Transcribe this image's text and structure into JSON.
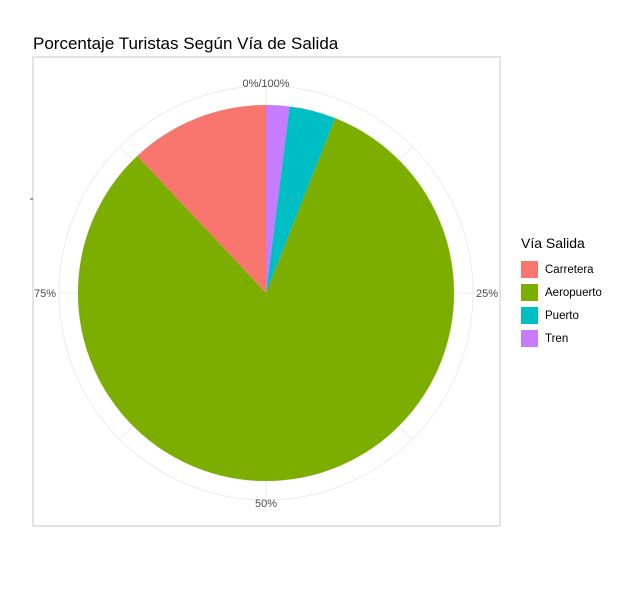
{
  "chart_data": {
    "type": "pie",
    "title": "Porcentaje Turistas Según Vía de Salida",
    "legend_title": "Vía Salida",
    "legend_placement": "right",
    "grid": true,
    "slices": [
      {
        "name": "Carretera",
        "value": 12,
        "color": "#F8766D"
      },
      {
        "name": "Aeropuerto",
        "value": 82,
        "color": "#7CAE00"
      },
      {
        "name": "Puerto",
        "value": 4,
        "color": "#00BFC4"
      },
      {
        "name": "Tren",
        "value": 2,
        "color": "#C77CFF"
      }
    ],
    "slice_order_clockwise_from_top": [
      "Tren",
      "Puerto",
      "Aeropuerto",
      "Carretera"
    ],
    "angular_ticks": [
      {
        "label": "0%/100%",
        "value": 0
      },
      {
        "label": "25%",
        "value": 25
      },
      {
        "label": "50%",
        "value": 50
      },
      {
        "label": "75%",
        "value": 75
      }
    ]
  }
}
